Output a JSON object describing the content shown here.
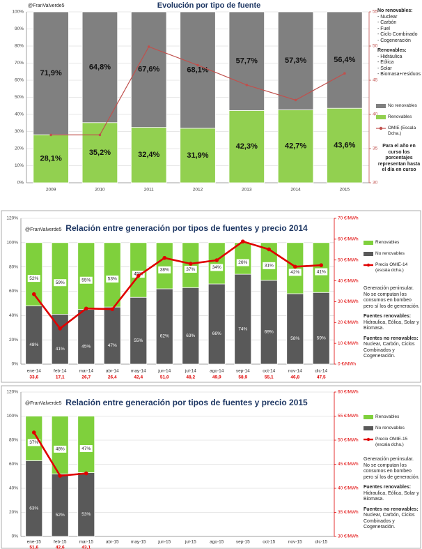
{
  "chart_data": [
    {
      "type": "bar",
      "stacked": true,
      "handle": "@FranValverde5",
      "title": "Evolución por tipo de fuente",
      "categories": [
        "2009",
        "2010",
        "2011",
        "2012",
        "2013",
        "2014",
        "2015"
      ],
      "series": [
        {
          "name": "Renovables",
          "color": "#92d050",
          "values": [
            28.1,
            35.2,
            32.4,
            31.9,
            42.3,
            42.7,
            43.6
          ],
          "value_labels": [
            "28,1%",
            "35,2%",
            "32,4%",
            "31,9%",
            "42,3%",
            "42,7%",
            "43,6%"
          ]
        },
        {
          "name": "No renovables",
          "color": "#808080",
          "values": [
            71.9,
            64.8,
            67.6,
            68.1,
            57.7,
            57.3,
            56.4
          ],
          "value_labels": [
            "71,9%",
            "64,8%",
            "67,6%",
            "68,1%",
            "57,7%",
            "57,3%",
            "56,4%"
          ]
        },
        {
          "name": "OMIE (Escala Dcha.)",
          "type": "line",
          "axis": "y2",
          "color": "#c0504d",
          "values": [
            37.0,
            37.0,
            49.9,
            47.2,
            44.3,
            42.1,
            46.0
          ]
        }
      ],
      "ylim": [
        0,
        100
      ],
      "yticks": [
        {
          "value": 0,
          "label": "0%"
        },
        {
          "value": 10,
          "label": "10%"
        },
        {
          "value": 20,
          "label": "20%"
        },
        {
          "value": 30,
          "label": "30%"
        },
        {
          "value": 40,
          "label": "40%"
        },
        {
          "value": 50,
          "label": "50%"
        },
        {
          "value": 60,
          "label": "60%"
        },
        {
          "value": 70,
          "label": "70%"
        },
        {
          "value": 80,
          "label": "80%"
        },
        {
          "value": 90,
          "label": "90%"
        },
        {
          "value": 100,
          "label": "100%"
        }
      ],
      "y2lim": [
        30,
        55
      ],
      "y2ticks": [
        30,
        35,
        40,
        45,
        50,
        55
      ],
      "grid": true,
      "notes": [
        {
          "heading": "No renovables:",
          "items": [
            "- Nuclear",
            "- Carbón",
            "- Fuel",
            "- Ciclo Combinado",
            "- Cogeneración"
          ]
        },
        {
          "heading": "Renovables:",
          "items": [
            "- Hidráulica",
            "- Eólica",
            "- Solar",
            "- Biomasa+residuos"
          ]
        }
      ],
      "footnote": "Para el año en curso los porcentajes representan hasta el día en curso"
    },
    {
      "type": "bar",
      "stacked": true,
      "handle": "@FranValverde5",
      "title": "Relación entre generación por tipos de fuentes y precio 2014",
      "categories": [
        "ene-14",
        "feb-14",
        "mar-14",
        "abr-14",
        "may-14",
        "jun-14",
        "jul-14",
        "ago-14",
        "sep-14",
        "oct-14",
        "nov-14",
        "dic-14"
      ],
      "series": [
        {
          "name": "No renovables",
          "color": "#595959",
          "values": [
            48,
            41,
            45,
            47,
            55,
            62,
            63,
            66,
            74,
            69,
            58,
            59
          ],
          "value_labels": [
            "48%",
            "41%",
            "45%",
            "47%",
            "55%",
            "62%",
            "63%",
            "66%",
            "74%",
            "69%",
            "58%",
            "59%"
          ]
        },
        {
          "name": "Renovables",
          "color": "#7fd03c",
          "values": [
            52,
            59,
            55,
            53,
            45,
            38,
            37,
            34,
            26,
            31,
            42,
            41
          ],
          "value_labels": [
            "52%",
            "59%",
            "55%",
            "53%",
            "45%",
            "38%",
            "37%",
            "34%",
            "26%",
            "31%",
            "42%",
            "41%"
          ]
        },
        {
          "name": "Precio OMIE-14 (escala dcha.)",
          "type": "line",
          "axis": "y2",
          "color": "#e00000",
          "values": [
            33.6,
            17.1,
            26.7,
            26.4,
            42.4,
            51.0,
            48.2,
            49.9,
            58.9,
            55.1,
            46.8,
            47.5
          ],
          "value_labels": [
            "33,6",
            "17,1",
            "26,7",
            "26,4",
            "42,4",
            "51,0",
            "48,2",
            "49,9",
            "58,9",
            "55,1",
            "46,8",
            "47,5"
          ]
        }
      ],
      "ylim": [
        0,
        120
      ],
      "yticks": [
        {
          "value": 0,
          "label": "0%"
        },
        {
          "value": 20,
          "label": "20%"
        },
        {
          "value": 40,
          "label": "40%"
        },
        {
          "value": 60,
          "label": "60%"
        },
        {
          "value": 80,
          "label": "80%"
        },
        {
          "value": 100,
          "label": "100%"
        },
        {
          "value": 120,
          "label": "120%"
        }
      ],
      "y2lim": [
        0,
        70
      ],
      "y2ticks": [
        {
          "value": 0,
          "label": "0 €/MWh"
        },
        {
          "value": 10,
          "label": "10 €/MWh"
        },
        {
          "value": 20,
          "label": "20 €/MWh"
        },
        {
          "value": 30,
          "label": "30 €/MWh"
        },
        {
          "value": 40,
          "label": "40 €/MWh"
        },
        {
          "value": 50,
          "label": "50 €/MWh"
        },
        {
          "value": 60,
          "label": "60 €/MWh"
        },
        {
          "value": 70,
          "label": "70 €/MWh"
        }
      ],
      "grid": true,
      "notes": [
        {
          "text": "Generación peninsular. No se computan los consumos en bombeo pero sí los de generación."
        },
        {
          "heading": "Fuentes renovables:",
          "text": "Hidraulica, Eólica, Solar y Biomasa."
        },
        {
          "heading": "Fuentes no renovables:",
          "text": "Nuclear, Carbón, Ciclos Combinados y Cogeneración."
        }
      ]
    },
    {
      "type": "bar",
      "stacked": true,
      "handle": "@FranValverde5",
      "title": "Relación entre  generación por tipos de fuentes y precio 2015",
      "categories": [
        "ene-15",
        "feb-15",
        "mar-15",
        "abr-15",
        "may-15",
        "jun-15",
        "jul-15",
        "ago-15",
        "sep-15",
        "oct-15",
        "nov-15",
        "dic-15"
      ],
      "series": [
        {
          "name": "No renovables",
          "color": "#595959",
          "values": [
            63,
            52,
            53,
            null,
            null,
            null,
            null,
            null,
            null,
            null,
            null,
            null
          ],
          "value_labels": [
            "63%",
            "52%",
            "53%",
            null,
            null,
            null,
            null,
            null,
            null,
            null,
            null,
            null
          ]
        },
        {
          "name": "Renovables",
          "color": "#7fd03c",
          "values": [
            37,
            48,
            47,
            null,
            null,
            null,
            null,
            null,
            null,
            null,
            null,
            null
          ],
          "value_labels": [
            "37%",
            "48%",
            "47%",
            null,
            null,
            null,
            null,
            null,
            null,
            null,
            null,
            null
          ]
        },
        {
          "name": "Precio OMIE-15 (escala dcha.)",
          "type": "line",
          "axis": "y2",
          "color": "#e00000",
          "values": [
            51.6,
            42.6,
            43.1,
            null,
            null,
            null,
            null,
            null,
            null,
            null,
            null,
            null
          ],
          "value_labels": [
            "51,6",
            "42,6",
            "43,1",
            null,
            null,
            null,
            null,
            null,
            null,
            null,
            null,
            null
          ]
        }
      ],
      "ylim": [
        0,
        120
      ],
      "yticks": [
        {
          "value": 0,
          "label": "0%"
        },
        {
          "value": 20,
          "label": "20%"
        },
        {
          "value": 40,
          "label": "40%"
        },
        {
          "value": 60,
          "label": "60%"
        },
        {
          "value": 80,
          "label": "80%"
        },
        {
          "value": 100,
          "label": "100%"
        },
        {
          "value": 120,
          "label": "120%"
        }
      ],
      "y2lim": [
        30,
        60
      ],
      "y2ticks": [
        {
          "value": 30,
          "label": "30 €/MWh"
        },
        {
          "value": 35,
          "label": "35 €/MWh"
        },
        {
          "value": 40,
          "label": "40 €/MWh"
        },
        {
          "value": 45,
          "label": "45 €/MWh"
        },
        {
          "value": 50,
          "label": "50 €/MWh"
        },
        {
          "value": 55,
          "label": "55 €/MWh"
        },
        {
          "value": 60,
          "label": "60 €/MWh"
        }
      ],
      "grid": true,
      "notes": [
        {
          "text": "Generación peninsular. No se computan los consumos en bombeo pero sí los de generación."
        },
        {
          "heading": "Fuentes renovables:",
          "text": "Hidraulica, Eólica, Solar y Biomasa."
        },
        {
          "heading": "Fuentes no renovables:",
          "text": "Nuclear, Carbón, Ciclos Combinados y Cogeneración."
        }
      ]
    }
  ]
}
